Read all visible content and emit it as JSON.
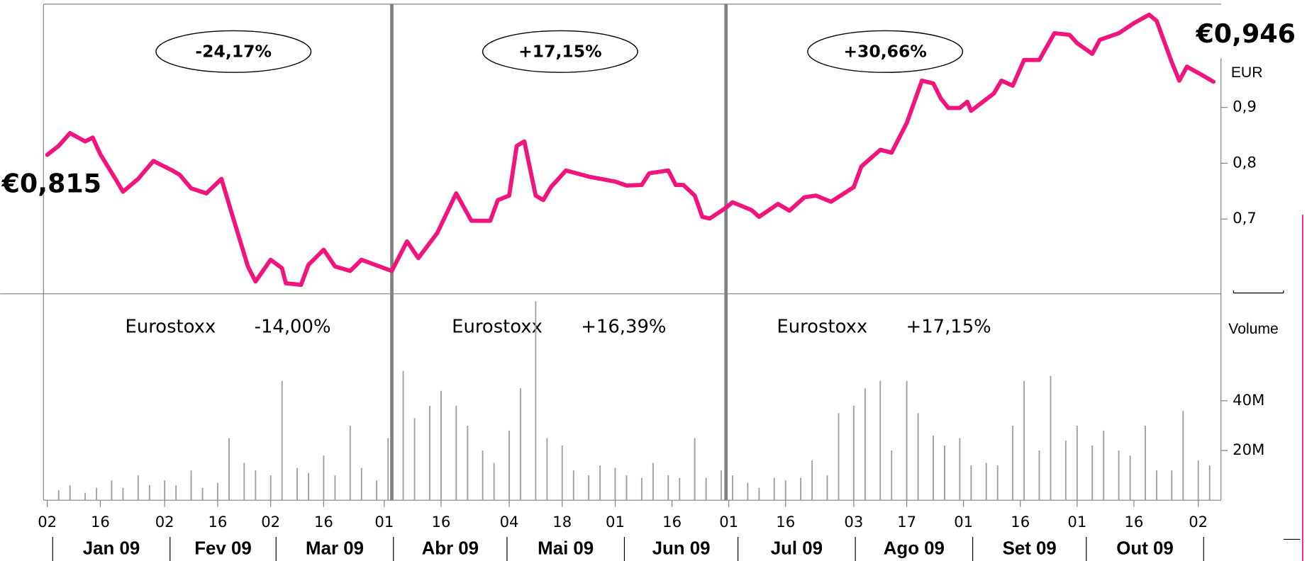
{
  "chart_data": [
    {
      "type": "line",
      "color": "#f0147c",
      "start_label": "€0,815",
      "end_label": "€0,946",
      "ylabel": "EUR",
      "xlim": [
        "2009-01-01",
        "2009-11-08"
      ],
      "ylim": [
        0.566,
        1.085
      ],
      "yticks": [
        {
          "value": 0.7,
          "label": "0,7"
        },
        {
          "value": 0.8,
          "label": "0,8"
        },
        {
          "value": 0.9,
          "label": "0,9"
        }
      ],
      "xticks": [
        {
          "value": "2009-01-02",
          "label": "02"
        },
        {
          "value": "2009-01-16",
          "label": "16"
        },
        {
          "value": "2009-02-02",
          "label": "02"
        },
        {
          "value": "2009-02-16",
          "label": "16"
        },
        {
          "value": "2009-03-02",
          "label": "02"
        },
        {
          "value": "2009-03-16",
          "label": "16"
        },
        {
          "value": "2009-04-01",
          "label": "01"
        },
        {
          "value": "2009-04-16",
          "label": "16"
        },
        {
          "value": "2009-05-04",
          "label": "04"
        },
        {
          "value": "2009-05-18",
          "label": "18"
        },
        {
          "value": "2009-06-01",
          "label": "01"
        },
        {
          "value": "2009-06-16",
          "label": "16"
        },
        {
          "value": "2009-07-01",
          "label": "01"
        },
        {
          "value": "2009-07-16",
          "label": "16"
        },
        {
          "value": "2009-08-03",
          "label": "03"
        },
        {
          "value": "2009-08-17",
          "label": "17"
        },
        {
          "value": "2009-09-01",
          "label": "01"
        },
        {
          "value": "2009-09-16",
          "label": "16"
        },
        {
          "value": "2009-10-01",
          "label": "01"
        },
        {
          "value": "2009-10-16",
          "label": "16"
        },
        {
          "value": "2009-11-02",
          "label": "02"
        }
      ],
      "months": [
        "Jan 09",
        "Fev 09",
        "Mar 09",
        "Abr 09",
        "Mai 09",
        "Jun 09",
        "Jul 09",
        "Ago 09",
        "Set 09",
        "Out 09"
      ],
      "annotations": [
        {
          "text": "-24,17%",
          "benchmark": "Eurostoxx",
          "benchmark_change": "-14,00%"
        },
        {
          "text": "+17,15%",
          "benchmark": "Eurostoxx",
          "benchmark_change": "+16,39%"
        },
        {
          "text": "+30,66%",
          "benchmark": "Eurostoxx",
          "benchmark_change": "+17,15%"
        }
      ],
      "x": [
        "2009-01-02",
        "2009-01-05",
        "2009-01-08",
        "2009-01-12",
        "2009-01-14",
        "2009-01-16",
        "2009-01-20",
        "2009-01-22",
        "2009-01-26",
        "2009-01-30",
        "2009-02-04",
        "2009-02-06",
        "2009-02-09",
        "2009-02-13",
        "2009-02-17",
        "2009-02-20",
        "2009-02-24",
        "2009-02-26",
        "2009-03-02",
        "2009-03-05",
        "2009-03-06",
        "2009-03-10",
        "2009-03-12",
        "2009-03-16",
        "2009-03-19",
        "2009-03-23",
        "2009-03-26",
        "2009-04-01",
        "2009-04-03",
        "2009-04-07",
        "2009-04-10",
        "2009-04-15",
        "2009-04-20",
        "2009-04-24",
        "2009-04-29",
        "2009-05-01",
        "2009-05-04",
        "2009-05-06",
        "2009-05-08",
        "2009-05-11",
        "2009-05-13",
        "2009-05-15",
        "2009-05-19",
        "2009-05-25",
        "2009-06-01",
        "2009-06-04",
        "2009-06-08",
        "2009-06-10",
        "2009-06-15",
        "2009-06-17",
        "2009-06-19",
        "2009-06-22",
        "2009-06-24",
        "2009-06-26",
        "2009-06-30",
        "2009-07-02",
        "2009-07-07",
        "2009-07-09",
        "2009-07-14",
        "2009-07-17",
        "2009-07-21",
        "2009-07-24",
        "2009-07-28",
        "2009-08-03",
        "2009-08-05",
        "2009-08-10",
        "2009-08-13",
        "2009-08-17",
        "2009-08-21",
        "2009-08-24",
        "2009-08-26",
        "2009-08-28",
        "2009-08-31",
        "2009-09-02",
        "2009-09-03",
        "2009-09-09",
        "2009-09-11",
        "2009-09-14",
        "2009-09-17",
        "2009-09-21",
        "2009-09-25",
        "2009-09-29",
        "2009-10-01",
        "2009-10-05",
        "2009-10-07",
        "2009-10-12",
        "2009-10-16",
        "2009-10-20",
        "2009-10-22",
        "2009-10-26",
        "2009-10-28",
        "2009-10-30",
        "2009-11-03",
        "2009-11-06"
      ],
      "values": [
        0.815,
        0.831,
        0.854,
        0.839,
        0.846,
        0.816,
        0.772,
        0.749,
        0.772,
        0.804,
        0.787,
        0.779,
        0.755,
        0.746,
        0.772,
        0.704,
        0.615,
        0.588,
        0.627,
        0.612,
        0.585,
        0.582,
        0.618,
        0.645,
        0.615,
        0.607,
        0.627,
        0.612,
        0.607,
        0.66,
        0.63,
        0.675,
        0.746,
        0.697,
        0.697,
        0.734,
        0.742,
        0.831,
        0.839,
        0.742,
        0.734,
        0.757,
        0.787,
        0.776,
        0.767,
        0.76,
        0.761,
        0.782,
        0.787,
        0.761,
        0.761,
        0.742,
        0.704,
        0.701,
        0.719,
        0.73,
        0.716,
        0.704,
        0.727,
        0.715,
        0.739,
        0.742,
        0.731,
        0.757,
        0.794,
        0.824,
        0.819,
        0.872,
        0.948,
        0.943,
        0.916,
        0.899,
        0.899,
        0.91,
        0.894,
        0.925,
        0.948,
        0.939,
        0.985,
        0.985,
        1.033,
        1.03,
        1.015,
        0.996,
        1.021,
        1.033,
        1.051,
        1.066,
        1.055,
        0.981,
        0.948,
        0.973,
        0.958,
        0.946
      ]
    },
    {
      "type": "bar",
      "color": "#a0a0a0",
      "ylabel": "Volume",
      "ylim": [
        0,
        83
      ],
      "yticks": [
        {
          "value": 20,
          "label": "20M"
        },
        {
          "value": 40,
          "label": "40M"
        }
      ],
      "x": [
        "2009-01-05",
        "2009-01-08",
        "2009-01-12",
        "2009-01-15",
        "2009-01-19",
        "2009-01-22",
        "2009-01-26",
        "2009-01-29",
        "2009-02-02",
        "2009-02-05",
        "2009-02-09",
        "2009-02-12",
        "2009-02-16",
        "2009-02-19",
        "2009-02-23",
        "2009-02-26",
        "2009-03-02",
        "2009-03-05",
        "2009-03-09",
        "2009-03-12",
        "2009-03-16",
        "2009-03-19",
        "2009-03-23",
        "2009-03-26",
        "2009-03-30",
        "2009-04-02",
        "2009-04-06",
        "2009-04-09",
        "2009-04-13",
        "2009-04-16",
        "2009-04-20",
        "2009-04-23",
        "2009-04-27",
        "2009-04-30",
        "2009-05-04",
        "2009-05-07",
        "2009-05-11",
        "2009-05-14",
        "2009-05-18",
        "2009-05-21",
        "2009-05-25",
        "2009-05-28",
        "2009-06-01",
        "2009-06-04",
        "2009-06-08",
        "2009-06-11",
        "2009-06-15",
        "2009-06-18",
        "2009-06-22",
        "2009-06-25",
        "2009-06-29",
        "2009-07-02",
        "2009-07-06",
        "2009-07-09",
        "2009-07-13",
        "2009-07-16",
        "2009-07-20",
        "2009-07-23",
        "2009-07-27",
        "2009-07-30",
        "2009-08-03",
        "2009-08-06",
        "2009-08-10",
        "2009-08-13",
        "2009-08-17",
        "2009-08-20",
        "2009-08-24",
        "2009-08-27",
        "2009-08-31",
        "2009-09-03",
        "2009-09-07",
        "2009-09-10",
        "2009-09-14",
        "2009-09-17",
        "2009-09-21",
        "2009-09-24",
        "2009-09-28",
        "2009-10-01",
        "2009-10-05",
        "2009-10-08",
        "2009-10-12",
        "2009-10-15",
        "2009-10-19",
        "2009-10-22",
        "2009-10-26",
        "2009-10-29",
        "2009-11-02",
        "2009-11-05"
      ],
      "values": [
        4,
        6,
        3,
        5,
        8,
        5,
        10,
        6,
        8,
        6,
        12,
        5,
        7,
        25,
        15,
        12,
        10,
        48,
        13,
        11,
        18,
        10,
        30,
        13,
        8,
        25,
        52,
        33,
        38,
        44,
        38,
        30,
        20,
        15,
        28,
        45,
        80,
        25,
        22,
        12,
        10,
        14,
        13,
        10,
        9,
        15,
        10,
        9,
        25,
        9,
        12,
        10,
        7,
        5,
        9,
        8,
        9,
        16,
        10,
        35,
        38,
        45,
        48,
        20,
        48,
        35,
        26,
        22,
        25,
        14,
        15,
        14,
        30,
        48,
        20,
        50,
        24,
        30,
        22,
        28,
        20,
        18,
        30,
        12,
        12,
        36,
        16,
        14
      ]
    }
  ]
}
